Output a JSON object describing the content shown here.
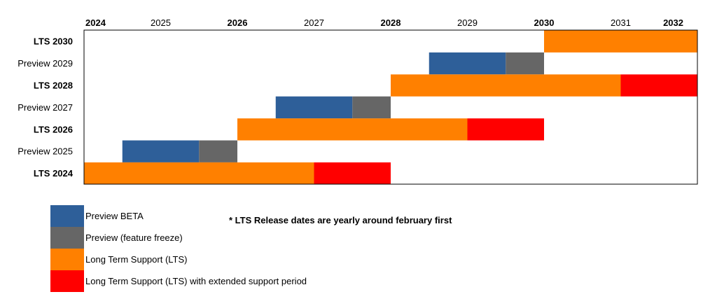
{
  "chart_data": {
    "type": "gantt",
    "x_axis": {
      "years": [
        {
          "label": "2024",
          "bold": true
        },
        {
          "label": "2025",
          "bold": false
        },
        {
          "label": "2026",
          "bold": true
        },
        {
          "label": "2027",
          "bold": false
        },
        {
          "label": "2028",
          "bold": true
        },
        {
          "label": "2029",
          "bold": false
        },
        {
          "label": "2030",
          "bold": true
        },
        {
          "label": "2031",
          "bold": false
        },
        {
          "label": "2032",
          "bold": true
        }
      ],
      "range": [
        2024.0,
        2032.0
      ]
    },
    "rows": [
      {
        "kind": "LTS",
        "year": "2030",
        "bold": true,
        "segments": [
          {
            "phase": "lts",
            "start": 2030.0,
            "end": 2032.0
          }
        ]
      },
      {
        "kind": "Preview",
        "year": "2029",
        "bold": false,
        "segments": [
          {
            "phase": "beta",
            "start": 2028.5,
            "end": 2029.5
          },
          {
            "phase": "freeze",
            "start": 2029.5,
            "end": 2030.0
          }
        ]
      },
      {
        "kind": "LTS",
        "year": "2028",
        "bold": true,
        "segments": [
          {
            "phase": "lts",
            "start": 2028.0,
            "end": 2031.0
          },
          {
            "phase": "extended",
            "start": 2031.0,
            "end": 2032.0
          }
        ]
      },
      {
        "kind": "Preview",
        "year": "2027",
        "bold": false,
        "segments": [
          {
            "phase": "beta",
            "start": 2026.5,
            "end": 2027.5
          },
          {
            "phase": "freeze",
            "start": 2027.5,
            "end": 2028.0
          }
        ]
      },
      {
        "kind": "LTS",
        "year": "2026",
        "bold": true,
        "segments": [
          {
            "phase": "lts",
            "start": 2026.0,
            "end": 2029.0
          },
          {
            "phase": "extended",
            "start": 2029.0,
            "end": 2030.0
          }
        ]
      },
      {
        "kind": "Preview",
        "year": "2025",
        "bold": false,
        "segments": [
          {
            "phase": "beta",
            "start": 2024.5,
            "end": 2025.5
          },
          {
            "phase": "freeze",
            "start": 2025.5,
            "end": 2026.0
          }
        ]
      },
      {
        "kind": "LTS",
        "year": "2024",
        "bold": true,
        "segments": [
          {
            "phase": "lts",
            "start": 2024.0,
            "end": 2027.0
          },
          {
            "phase": "extended",
            "start": 2027.0,
            "end": 2028.0
          }
        ]
      }
    ],
    "phases": {
      "beta": {
        "color": "#2e5f99"
      },
      "freeze": {
        "color": "#666666"
      },
      "lts": {
        "color": "#ff8000"
      },
      "extended": {
        "color": "#ff0000"
      }
    }
  },
  "legend": {
    "items": [
      {
        "label": "Preview BETA",
        "color": "#2e5f99"
      },
      {
        "label": "Preview (feature freeze)",
        "color": "#666666"
      },
      {
        "label": "Long Term Support (LTS)",
        "color": "#ff8000"
      },
      {
        "label": "Long Term Support (LTS) with extended support period",
        "color": "#ff0000"
      }
    ]
  },
  "note": "* LTS Release dates are yearly around february first"
}
